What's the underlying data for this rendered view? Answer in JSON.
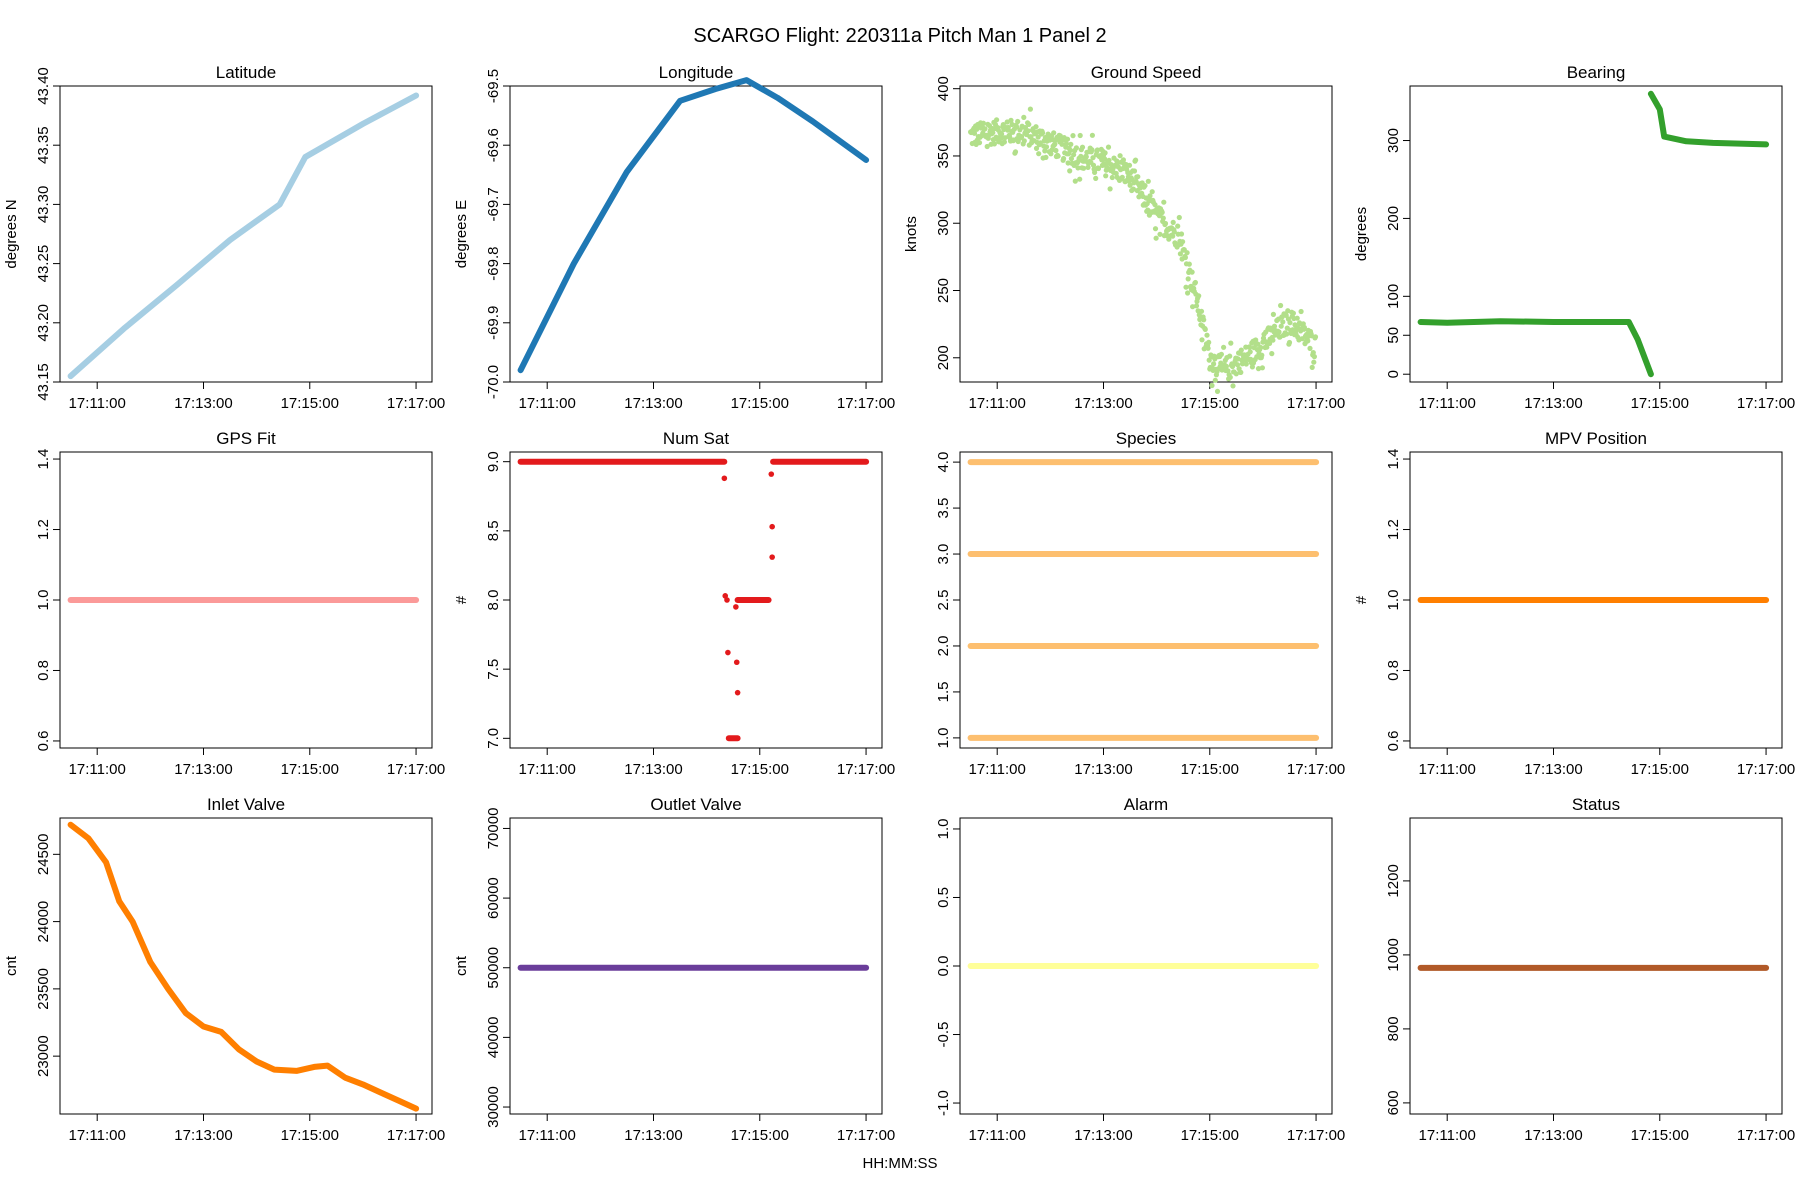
{
  "title": "SCARGO Flight: 220311a  Pitch Man 1 Panel 2",
  "xaxis_label": "HH:MM:SS",
  "chart_data": [
    {
      "name": "latitude",
      "type": "scatter",
      "title": "Latitude",
      "ylabel": "degrees N",
      "color": "#a6cee3",
      "xlim": [
        "17:10:18",
        "17:17:18"
      ],
      "xticks": [
        "17:11:00",
        "17:13:00",
        "17:15:00",
        "17:17:00"
      ],
      "ylim": [
        43.15,
        43.4
      ],
      "yticks": [
        "43.15",
        "43.20",
        "43.25",
        "43.30",
        "43.35",
        "43.40"
      ],
      "series": [
        {
          "kind": "line",
          "points": [
            [
              "17:10:30",
              43.155
            ],
            [
              "17:11:30",
              43.195
            ],
            [
              "17:12:30",
              43.232
            ],
            [
              "17:13:30",
              43.27
            ],
            [
              "17:14:26",
              43.3
            ],
            [
              "17:14:55",
              43.34
            ],
            [
              "17:16:00",
              43.368
            ],
            [
              "17:17:00",
              43.392
            ]
          ]
        }
      ]
    },
    {
      "name": "longitude",
      "type": "scatter",
      "title": "Longitude",
      "ylabel": "degrees E",
      "color": "#1f78b4",
      "xlim": [
        "17:10:18",
        "17:17:18"
      ],
      "xticks": [
        "17:11:00",
        "17:13:00",
        "17:15:00",
        "17:17:00"
      ],
      "ylim": [
        -70.0,
        -69.5
      ],
      "yticks": [
        "-70.0",
        "-69.9",
        "-69.8",
        "-69.7",
        "-69.6",
        "-69.5"
      ],
      "series": [
        {
          "kind": "line",
          "points": [
            [
              "17:10:30",
              -69.98
            ],
            [
              "17:11:30",
              -69.8
            ],
            [
              "17:12:30",
              -69.645
            ],
            [
              "17:13:30",
              -69.525
            ],
            [
              "17:14:10",
              -69.505
            ],
            [
              "17:14:45",
              -69.49
            ],
            [
              "17:15:20",
              -69.52
            ],
            [
              "17:16:00",
              -69.56
            ],
            [
              "17:17:00",
              -69.625
            ]
          ]
        }
      ]
    },
    {
      "name": "ground-speed",
      "type": "scatter",
      "title": "Ground Speed",
      "ylabel": "knots",
      "color": "#b2df8a",
      "xlim": [
        "17:10:18",
        "17:17:18"
      ],
      "xticks": [
        "17:11:00",
        "17:13:00",
        "17:15:00",
        "17:17:00"
      ],
      "ylim": [
        182,
        402
      ],
      "yticks": [
        "200",
        "250",
        "300",
        "350",
        "400"
      ],
      "series": [
        {
          "kind": "noisy",
          "noise": 9,
          "points": [
            [
              "17:10:30",
              365
            ],
            [
              "17:11:00",
              368
            ],
            [
              "17:11:30",
              368
            ],
            [
              "17:12:00",
              360
            ],
            [
              "17:12:30",
              350
            ],
            [
              "17:13:00",
              345
            ],
            [
              "17:13:30",
              335
            ],
            [
              "17:14:00",
              305
            ],
            [
              "17:14:25",
              290
            ],
            [
              "17:14:45",
              245
            ],
            [
              "17:15:00",
              200
            ],
            [
              "17:15:15",
              190
            ],
            [
              "17:15:40",
              200
            ],
            [
              "17:16:00",
              210
            ],
            [
              "17:16:30",
              228
            ],
            [
              "17:17:00",
              208
            ]
          ]
        }
      ]
    },
    {
      "name": "bearing",
      "type": "scatter",
      "title": "Bearing",
      "ylabel": "degrees",
      "color": "#33a02c",
      "xlim": [
        "17:10:18",
        "17:17:18"
      ],
      "xticks": [
        "17:11:00",
        "17:13:00",
        "17:15:00",
        "17:17:00"
      ],
      "ylim": [
        -10,
        370
      ],
      "yticks": [
        "0",
        "50",
        "100",
        "200",
        "300"
      ],
      "series": [
        {
          "kind": "line",
          "points": [
            [
              "17:10:30",
              67
            ],
            [
              "17:11:00",
              66
            ],
            [
              "17:12:00",
              68
            ],
            [
              "17:13:00",
              67
            ],
            [
              "17:14:00",
              67
            ],
            [
              "17:14:25",
              67
            ],
            [
              "17:14:35",
              45
            ],
            [
              "17:14:50",
              0
            ]
          ]
        },
        {
          "kind": "line",
          "points": [
            [
              "17:14:50",
              360
            ],
            [
              "17:15:00",
              340
            ],
            [
              "17:15:05",
              305
            ],
            [
              "17:15:30",
              299
            ],
            [
              "17:16:00",
              297
            ],
            [
              "17:17:00",
              295
            ]
          ]
        }
      ]
    },
    {
      "name": "gps-fit",
      "type": "scatter",
      "title": "GPS Fit",
      "ylabel": "",
      "color": "#fb9a99",
      "xlim": [
        "17:10:18",
        "17:17:18"
      ],
      "xticks": [
        "17:11:00",
        "17:13:00",
        "17:15:00",
        "17:17:00"
      ],
      "ylim": [
        0.58,
        1.42
      ],
      "yticks": [
        "0.6",
        "0.8",
        "1.0",
        "1.2",
        "1.4"
      ],
      "series": [
        {
          "kind": "line",
          "points": [
            [
              "17:10:30",
              1.0
            ],
            [
              "17:17:00",
              1.0
            ]
          ]
        }
      ]
    },
    {
      "name": "num-sat",
      "type": "scatter",
      "title": "Num Sat",
      "ylabel": "#",
      "color": "#e31a1c",
      "xlim": [
        "17:10:18",
        "17:17:18"
      ],
      "xticks": [
        "17:11:00",
        "17:13:00",
        "17:15:00",
        "17:17:00"
      ],
      "ylim": [
        6.93,
        9.07
      ],
      "yticks": [
        "7.0",
        "7.5",
        "8.0",
        "8.5",
        "9.0"
      ],
      "series": [
        {
          "kind": "line",
          "points": [
            [
              "17:10:30",
              9.0
            ],
            [
              "17:14:20",
              9.0
            ]
          ]
        },
        {
          "kind": "line",
          "points": [
            [
              "17:14:25",
              7.0
            ],
            [
              "17:14:35",
              7.0
            ]
          ]
        },
        {
          "kind": "line",
          "points": [
            [
              "17:14:35",
              8.0
            ],
            [
              "17:15:10",
              8.0
            ]
          ]
        },
        {
          "kind": "line",
          "points": [
            [
              "17:15:15",
              9.0
            ],
            [
              "17:17:00",
              9.0
            ]
          ]
        },
        {
          "kind": "dots",
          "points": [
            [
              "17:14:20",
              8.88
            ],
            [
              "17:14:21",
              8.03
            ],
            [
              "17:14:23",
              8.0
            ],
            [
              "17:14:24",
              7.62
            ],
            [
              "17:14:33",
              7.95
            ],
            [
              "17:14:34",
              7.55
            ],
            [
              "17:14:35",
              7.33
            ],
            [
              "17:15:13",
              8.91
            ],
            [
              "17:15:14",
              8.53
            ],
            [
              "17:15:14",
              8.31
            ]
          ]
        }
      ]
    },
    {
      "name": "species",
      "type": "scatter",
      "title": "Species",
      "ylabel": "",
      "color": "#fdbf6f",
      "xlim": [
        "17:10:18",
        "17:17:18"
      ],
      "xticks": [
        "17:11:00",
        "17:13:00",
        "17:15:00",
        "17:17:00"
      ],
      "ylim": [
        0.89,
        4.11
      ],
      "yticks": [
        "1.0",
        "1.5",
        "2.0",
        "2.5",
        "3.0",
        "3.5",
        "4.0"
      ],
      "series": [
        {
          "kind": "line",
          "points": [
            [
              "17:10:30",
              1.0
            ],
            [
              "17:17:00",
              1.0
            ]
          ]
        },
        {
          "kind": "line",
          "points": [
            [
              "17:10:30",
              2.0
            ],
            [
              "17:17:00",
              2.0
            ]
          ]
        },
        {
          "kind": "line",
          "points": [
            [
              "17:10:30",
              3.0
            ],
            [
              "17:17:00",
              3.0
            ]
          ]
        },
        {
          "kind": "line",
          "points": [
            [
              "17:10:30",
              4.0
            ],
            [
              "17:17:00",
              4.0
            ]
          ]
        }
      ]
    },
    {
      "name": "mpv-position",
      "type": "scatter",
      "title": "MPV Position",
      "ylabel": "#",
      "color": "#ff7f00",
      "xlim": [
        "17:10:18",
        "17:17:18"
      ],
      "xticks": [
        "17:11:00",
        "17:13:00",
        "17:15:00",
        "17:17:00"
      ],
      "ylim": [
        0.58,
        1.42
      ],
      "yticks": [
        "0.6",
        "0.8",
        "1.0",
        "1.2",
        "1.4"
      ],
      "series": [
        {
          "kind": "line",
          "points": [
            [
              "17:10:30",
              1.0
            ],
            [
              "17:17:00",
              1.0
            ]
          ]
        }
      ]
    },
    {
      "name": "inlet-valve",
      "type": "scatter",
      "title": "Inlet Valve",
      "ylabel": "cnt",
      "color": "#ff7f00",
      "xlim": [
        "17:10:18",
        "17:17:18"
      ],
      "xticks": [
        "17:11:00",
        "17:13:00",
        "17:15:00",
        "17:17:00"
      ],
      "ylim": [
        22570,
        24770
      ],
      "yticks": [
        "23000",
        "23500",
        "24000",
        "24500"
      ],
      "series": [
        {
          "kind": "line",
          "points": [
            [
              "17:10:30",
              24720
            ],
            [
              "17:10:50",
              24620
            ],
            [
              "17:11:10",
              24440
            ],
            [
              "17:11:25",
              24150
            ],
            [
              "17:11:40",
              24000
            ],
            [
              "17:12:00",
              23700
            ],
            [
              "17:12:20",
              23500
            ],
            [
              "17:12:40",
              23320
            ],
            [
              "17:13:00",
              23220
            ],
            [
              "17:13:20",
              23180
            ],
            [
              "17:13:40",
              23050
            ],
            [
              "17:14:00",
              22960
            ],
            [
              "17:14:20",
              22900
            ],
            [
              "17:14:45",
              22890
            ],
            [
              "17:15:05",
              22920
            ],
            [
              "17:15:20",
              22930
            ],
            [
              "17:15:40",
              22840
            ],
            [
              "17:16:00",
              22790
            ],
            [
              "17:16:20",
              22730
            ],
            [
              "17:16:40",
              22670
            ],
            [
              "17:17:00",
              22610
            ]
          ]
        }
      ]
    },
    {
      "name": "outlet-valve",
      "type": "scatter",
      "title": "Outlet Valve",
      "ylabel": "cnt",
      "color": "#6a3d9a",
      "xlim": [
        "17:10:18",
        "17:17:18"
      ],
      "xticks": [
        "17:11:00",
        "17:13:00",
        "17:15:00",
        "17:17:00"
      ],
      "ylim": [
        29000,
        71500
      ],
      "yticks": [
        "30000",
        "40000",
        "50000",
        "60000",
        "70000"
      ],
      "series": [
        {
          "kind": "line",
          "points": [
            [
              "17:10:30",
              50000
            ],
            [
              "17:17:00",
              50000
            ]
          ]
        }
      ]
    },
    {
      "name": "alarm",
      "type": "scatter",
      "title": "Alarm",
      "ylabel": "",
      "color": "#ffff99",
      "xlim": [
        "17:10:18",
        "17:17:18"
      ],
      "xticks": [
        "17:11:00",
        "17:13:00",
        "17:15:00",
        "17:17:00"
      ],
      "ylim": [
        -1.08,
        1.08
      ],
      "yticks": [
        "-1.0",
        "-0.5",
        "0.0",
        "0.5",
        "1.0"
      ],
      "series": [
        {
          "kind": "line",
          "points": [
            [
              "17:10:30",
              0.0
            ],
            [
              "17:17:00",
              0.0
            ]
          ]
        }
      ]
    },
    {
      "name": "status",
      "type": "scatter",
      "title": "Status",
      "ylabel": "",
      "color": "#b15928",
      "xlim": [
        "17:10:18",
        "17:17:18"
      ],
      "xticks": [
        "17:11:00",
        "17:13:00",
        "17:15:00",
        "17:17:00"
      ],
      "ylim": [
        570,
        1370
      ],
      "yticks": [
        "600",
        "800",
        "1000",
        "1200"
      ],
      "series": [
        {
          "kind": "line",
          "points": [
            [
              "17:10:30",
              965
            ],
            [
              "17:17:00",
              965
            ]
          ]
        }
      ]
    }
  ]
}
